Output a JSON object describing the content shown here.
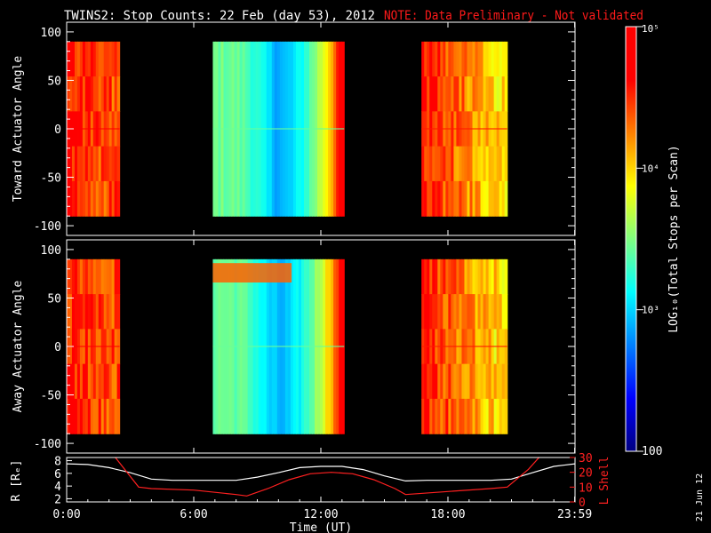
{
  "title": {
    "main": "TWINS2: Stop Counts: 22 Feb (day  53), 2012",
    "note": "NOTE: Data Preliminary - Not validated"
  },
  "colors": {
    "background": "#000000",
    "axes": "#ffffff",
    "note": "#ff1a1a",
    "r_line": "#ffffff",
    "lshell_line": "#ff2020"
  },
  "stamp": "21 Jun 12",
  "chart_data": [
    {
      "type": "heatmap",
      "name": "toward",
      "ylabel": "Toward Actuator Angle",
      "xlim": [
        0,
        24
      ],
      "ylim": [
        -110,
        110
      ],
      "yticks": [
        -100,
        -50,
        0,
        50,
        100
      ],
      "data_angle_range": [
        -90,
        90
      ],
      "colorscale": "log",
      "data_blocks": [
        {
          "t_start": 0.0,
          "t_end": 2.5,
          "angle_range": [
            -90,
            90
          ],
          "mean_counts": 40000
        },
        {
          "t_start": 6.9,
          "t_end": 13.1,
          "angle_range": [
            -90,
            90
          ],
          "mean_counts": 1500
        },
        {
          "t_start": 16.75,
          "t_end": 20.8,
          "angle_range": [
            -90,
            90
          ],
          "mean_counts": 20000
        }
      ]
    },
    {
      "type": "heatmap",
      "name": "away",
      "ylabel": "Away Actuator Angle",
      "xlim": [
        0,
        24
      ],
      "ylim": [
        -110,
        110
      ],
      "yticks": [
        -100,
        -50,
        0,
        50,
        100
      ],
      "data_angle_range": [
        -90,
        90
      ],
      "colorscale": "log",
      "data_blocks": [
        {
          "t_start": 0.0,
          "t_end": 2.5,
          "angle_range": [
            -90,
            90
          ],
          "mean_counts": 40000
        },
        {
          "t_start": 6.9,
          "t_end": 13.1,
          "angle_range": [
            -90,
            90
          ],
          "mean_counts": 1500
        },
        {
          "t_start": 16.75,
          "t_end": 20.8,
          "angle_range": [
            -90,
            90
          ],
          "mean_counts": 20000
        }
      ]
    },
    {
      "type": "colorbar",
      "label": "LOG₁₀(Total Stops per Scan)",
      "range": [
        100,
        100000
      ],
      "scale": "log",
      "tick_labels": [
        "100",
        "10³",
        "10⁴",
        "10⁵"
      ],
      "tick_values": [
        100,
        1000,
        10000,
        100000
      ],
      "colormap": [
        "#000080",
        "#0000ff",
        "#0080ff",
        "#00ffff",
        "#80ff80",
        "#ffff00",
        "#ff8000",
        "#ff0000",
        "#ff0000"
      ]
    },
    {
      "type": "line",
      "name": "ephemeris",
      "xlabel": "Time (UT)",
      "xlim": [
        0,
        24
      ],
      "xticks": [
        0,
        6,
        12,
        18,
        23.983
      ],
      "xtick_labels": [
        "0:00",
        "6:00",
        "12:00",
        "18:00",
        "23:59"
      ],
      "left_axis": {
        "label": "R [Rₑ]",
        "ylim": [
          1.5,
          8.5
        ],
        "ticks": [
          2,
          4,
          6,
          8
        ]
      },
      "right_axis": {
        "label": "L Shell",
        "ylim": [
          0,
          30
        ],
        "ticks": [
          0,
          10,
          20,
          30
        ]
      },
      "series": [
        {
          "name": "R",
          "axis": "left",
          "x": [
            0,
            1,
            2,
            3,
            4,
            5,
            6,
            7,
            8,
            9,
            10,
            11,
            12,
            13,
            14,
            15,
            16,
            17,
            18,
            19,
            20,
            21,
            22,
            23,
            24
          ],
          "y": [
            7.5,
            7.4,
            6.9,
            6.1,
            5.1,
            4.9,
            4.9,
            4.9,
            4.9,
            5.4,
            6.1,
            6.9,
            7.1,
            7.1,
            6.6,
            5.6,
            4.8,
            4.9,
            4.9,
            4.9,
            4.9,
            5.1,
            6.1,
            7.1,
            7.5
          ]
        },
        {
          "name": "L Shell",
          "axis": "right",
          "x": [
            2.3,
            3.4,
            4.0,
            6.0,
            8.0,
            8.5,
            9.5,
            10.5,
            11.5,
            12.5,
            13.5,
            14.5,
            15.5,
            16.0,
            18.0,
            20.0,
            20.8,
            21.8,
            22.3
          ],
          "y": [
            30,
            10,
            9,
            8,
            5,
            4,
            9,
            15,
            19,
            20,
            19,
            15,
            9,
            5,
            7,
            9,
            10,
            22,
            30
          ]
        }
      ]
    }
  ]
}
